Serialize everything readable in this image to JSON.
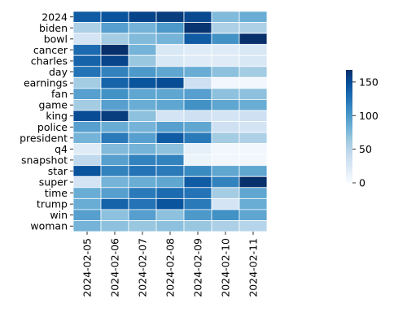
{
  "chart_data": {
    "type": "heatmap",
    "title": "",
    "xlabel": "",
    "ylabel": "",
    "x": [
      "2024-02-05",
      "2024-02-06",
      "2024-02-07",
      "2024-02-08",
      "2024-02-09",
      "2024-02-10",
      "2024-02-11"
    ],
    "y": [
      "2024",
      "biden",
      "bowl",
      "cancer",
      "charles",
      "day",
      "earnings",
      "fan",
      "game",
      "king",
      "police",
      "president",
      "q4",
      "snapshot",
      "star",
      "super",
      "time",
      "trump",
      "win",
      "woman"
    ],
    "values": [
      [
        140,
        145,
        155,
        160,
        152,
        75,
        85
      ],
      [
        55,
        95,
        80,
        100,
        165,
        55,
        55
      ],
      [
        30,
        60,
        75,
        80,
        140,
        105,
        168
      ],
      [
        130,
        168,
        80,
        25,
        20,
        20,
        25
      ],
      [
        135,
        155,
        65,
        25,
        20,
        20,
        25
      ],
      [
        125,
        115,
        100,
        90,
        85,
        70,
        60
      ],
      [
        60,
        135,
        145,
        150,
        35,
        5,
        5
      ],
      [
        95,
        105,
        90,
        90,
        95,
        70,
        70
      ],
      [
        60,
        95,
        85,
        90,
        105,
        90,
        85
      ],
      [
        150,
        160,
        70,
        30,
        35,
        30,
        35
      ],
      [
        95,
        85,
        80,
        95,
        90,
        35,
        30
      ],
      [
        80,
        120,
        95,
        140,
        120,
        60,
        55
      ],
      [
        20,
        75,
        80,
        70,
        15,
        5,
        5
      ],
      [
        45,
        95,
        115,
        115,
        10,
        5,
        5
      ],
      [
        145,
        115,
        125,
        120,
        110,
        90,
        90
      ],
      [
        30,
        80,
        85,
        90,
        140,
        115,
        168
      ],
      [
        85,
        95,
        120,
        130,
        125,
        60,
        90
      ],
      [
        85,
        135,
        125,
        145,
        120,
        30,
        85
      ],
      [
        95,
        70,
        95,
        70,
        100,
        105,
        90
      ],
      [
        80,
        70,
        65,
        70,
        65,
        55,
        50
      ]
    ],
    "colorbar": {
      "min": 0,
      "max": 168,
      "ticks": [
        "0",
        "50",
        "100",
        "150"
      ],
      "tick_values": [
        0,
        50,
        100,
        150
      ],
      "colormap": "Blues"
    },
    "grid": false
  }
}
